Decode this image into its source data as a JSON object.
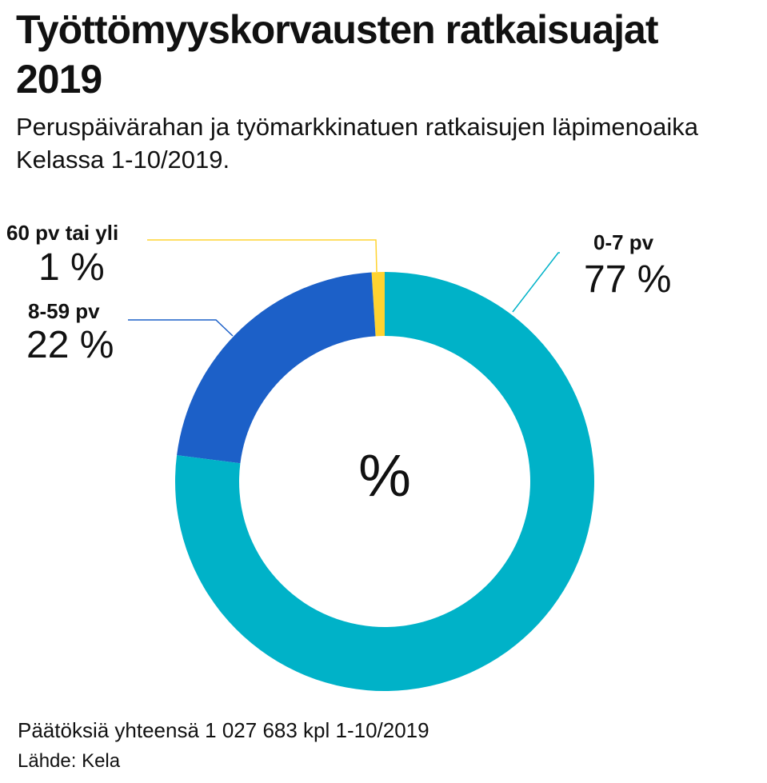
{
  "chart_data": {
    "type": "pie",
    "donut": true,
    "title": "Työttömyyskorvausten ratkaisuajat 2019",
    "subtitle": "Peruspäivärahan ja työmarkkinatuen ratkaisujen läpimenoaika Kelassa 1-10/2019.",
    "center_label": "%",
    "slices": [
      {
        "label": "0-7 pv",
        "value": 77,
        "value_label": "77 %",
        "color": "#00b2c8"
      },
      {
        "label": "8-59 pv",
        "value": 22,
        "value_label": "22 %",
        "color": "#1c60c8"
      },
      {
        "label": "60 pv tai yli",
        "value": 1,
        "value_label": "1 %",
        "color": "#ffd330"
      }
    ],
    "note": "Päätöksiä yhteensä 1 027 683 kpl 1-10/2019",
    "source": "Lähde: Kela"
  }
}
